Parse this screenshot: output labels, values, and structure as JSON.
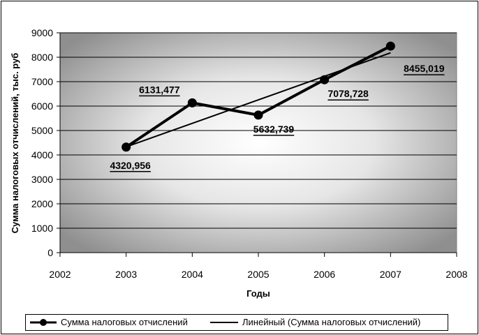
{
  "chart_data": {
    "type": "line",
    "ylabel": "Сумма налоговых отчислений, тыс. руб",
    "xlabel": "Годы",
    "xlim": [
      2002,
      2008
    ],
    "ylim": [
      0,
      9000
    ],
    "x_ticks": [
      "2002",
      "2003",
      "2004",
      "2005",
      "2006",
      "2007",
      "2008"
    ],
    "y_ticks": [
      "0",
      "1000",
      "2000",
      "3000",
      "4000",
      "5000",
      "6000",
      "7000",
      "8000",
      "9000"
    ],
    "grid": true,
    "legend_position": "bottom",
    "series": [
      {
        "name": "Сумма налоговых отчислений",
        "x": [
          2003,
          2004,
          2005,
          2006,
          2007
        ],
        "values": [
          4320.956,
          6131.477,
          5632.739,
          7078.728,
          8455.019
        ],
        "data_labels": [
          "4320,956",
          "6131,477",
          "5632,739",
          "7078,728",
          "8455,019"
        ],
        "color": "#000000",
        "marker": "circle"
      },
      {
        "name": "Линейный (Сумма налоговых отчислений)",
        "x": [
          2003,
          2007
        ],
        "values": [
          4330,
          8180
        ],
        "color": "#000000",
        "marker": "none"
      }
    ]
  }
}
